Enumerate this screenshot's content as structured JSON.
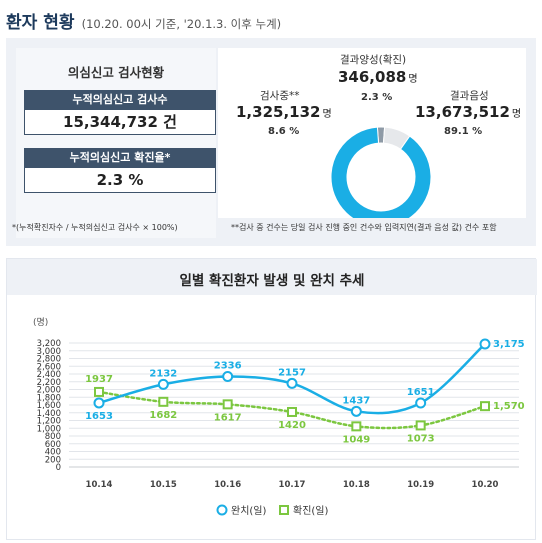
{
  "header": {
    "title": "환자 현황",
    "subtitle": "(10.20. 00시 기준, '20.1.3. 이후 누계)"
  },
  "summary": {
    "heading": "의심신고 검사현황",
    "tests_label": "누적의심신고 검사수",
    "tests_value": "15,344,732 건",
    "rate_label": "누적의심신고 확진율*",
    "rate_value": "2.3 %",
    "footnote_left": "*(누적확진자수 / 누적의심신고 검사수 × 100%)",
    "footnote_right": "**검사 중 건수는 당일 검사 진행 중인 건수와 입력지연(결과 음성 값) 건수 포함"
  },
  "donut": {
    "positive": {
      "label": "결과양성(확진)",
      "value": "346,088",
      "unit": "명",
      "pct": "2.3 %",
      "share": 2.3,
      "color": "#8e9aa6"
    },
    "testing": {
      "label": "검사중**",
      "value": "1,325,132",
      "unit": "명",
      "pct": "8.6 %",
      "share": 8.6,
      "color": "#e6e8eb"
    },
    "negative": {
      "label": "결과음성",
      "value": "13,673,512",
      "unit": "명",
      "pct": "89.1 %",
      "share": 89.1,
      "color": "#1aaee5"
    }
  },
  "chart_title": "일별 확진환자 발생 및 완치 추세",
  "chart_data": {
    "type": "line",
    "title": "일별 확진환자 발생 및 완치 추세",
    "ylabel": "(명)",
    "xlabel": "",
    "categories": [
      "10.14",
      "10.15",
      "10.16",
      "10.17",
      "10.18",
      "10.19",
      "10.20"
    ],
    "ylim": [
      0,
      3200
    ],
    "yticks": [
      0,
      200,
      400,
      600,
      800,
      1000,
      1200,
      1400,
      1600,
      1800,
      2000,
      2200,
      2400,
      2600,
      2800,
      3000,
      3200
    ],
    "ytick_labels": [
      "0",
      "200",
      "400",
      "600",
      "800",
      "1,000",
      "1,200",
      "1,400",
      "1,600",
      "1,800",
      "2,000",
      "2,200",
      "2,400",
      "2,600",
      "2,800",
      "3,000",
      "3,200"
    ],
    "grid": true,
    "legend": "bottom",
    "series": [
      {
        "name": "완치(일)",
        "values": [
          1653,
          2132,
          2336,
          2157,
          1437,
          1651,
          3175
        ],
        "labels": [
          "1653",
          "2132",
          "2336",
          "2157",
          "1437",
          "1651",
          "3,175"
        ],
        "color": "#1aaee5",
        "style": "solid",
        "marker": "circle"
      },
      {
        "name": "확진(일)",
        "values": [
          1937,
          1682,
          1617,
          1420,
          1049,
          1073,
          1570
        ],
        "labels": [
          "1937",
          "1682",
          "1617",
          "1420",
          "1049",
          "1073",
          "1,570"
        ],
        "color": "#7cc740",
        "style": "dotted",
        "marker": "square"
      }
    ]
  }
}
